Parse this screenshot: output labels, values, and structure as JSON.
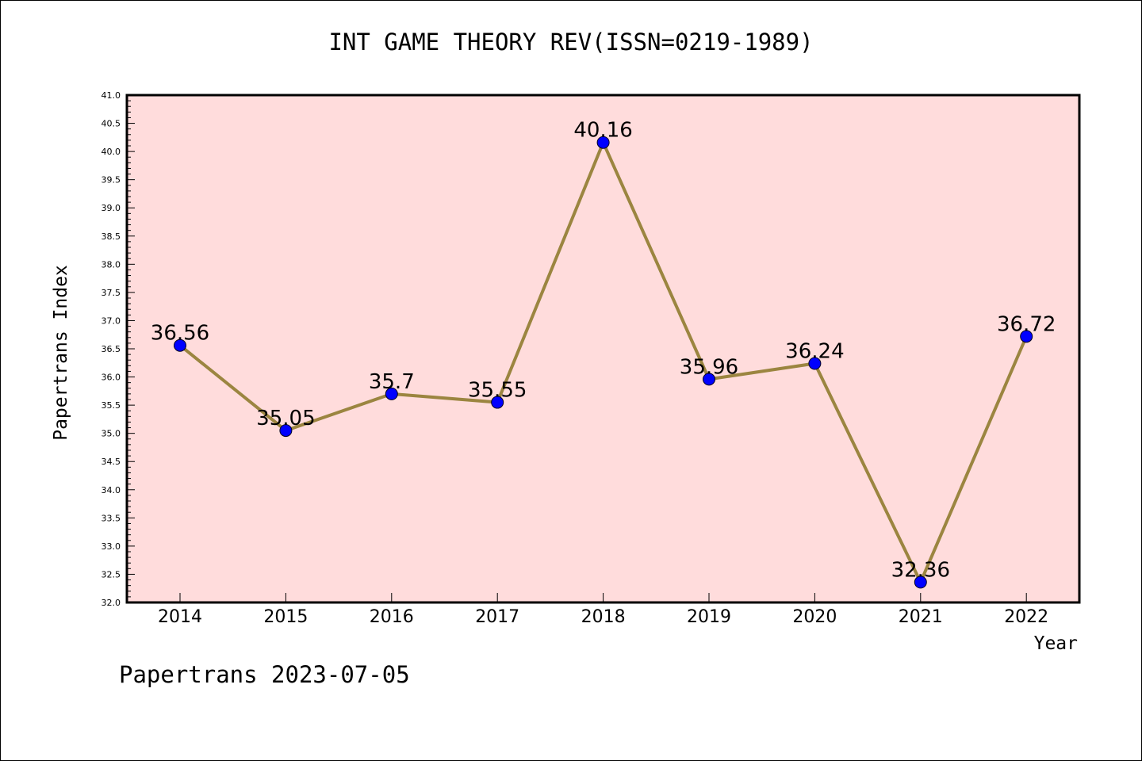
{
  "chart_data": {
    "type": "line",
    "title": "INT GAME THEORY REV(ISSN=0219-1989)",
    "xlabel": "Year",
    "ylabel": "Papertrans Index",
    "footer": "Papertrans 2023-07-05",
    "categories": [
      "2014",
      "2015",
      "2016",
      "2017",
      "2018",
      "2019",
      "2020",
      "2021",
      "2022"
    ],
    "values": [
      36.56,
      35.05,
      35.7,
      35.55,
      40.16,
      35.96,
      36.24,
      32.36,
      36.72
    ],
    "value_labels": [
      "36.56",
      "35.05",
      "35.7",
      "35.55",
      "40.16",
      "35.96",
      "36.24",
      "32.36",
      "36.72"
    ],
    "ylim": [
      32.0,
      41.0
    ],
    "yticks": [
      "32.0",
      "32.5",
      "33.0",
      "33.5",
      "34.0",
      "34.5",
      "35.0",
      "35.5",
      "36.0",
      "36.5",
      "37.0",
      "37.5",
      "38.0",
      "38.5",
      "39.0",
      "39.5",
      "40.0",
      "40.5",
      "41.0"
    ],
    "colors": {
      "plot_bg": "#ffdcdc",
      "line": "#9b8540",
      "marker": "#0000ff"
    },
    "grid": false
  }
}
